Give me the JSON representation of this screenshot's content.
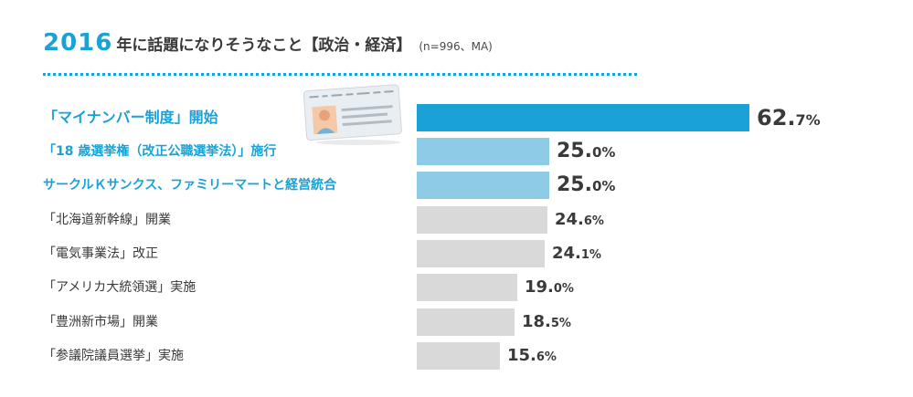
{
  "title": {
    "year": "2016",
    "main": "年に話題になりそうなこと【政治・経済】",
    "note": "(n=996、MA)"
  },
  "colors": {
    "accent": "#1aa1d6",
    "highlight_light": "#8dcbe7",
    "neutral_bar": "#d9d9d9",
    "text": "#3a3a3a"
  },
  "chart_data": {
    "type": "bar",
    "orientation": "horizontal",
    "title": "2016年に話題になりそうなこと【政治・経済】",
    "subtitle": "(n=996、MA)",
    "unit": "%",
    "xlim": [
      0,
      70
    ],
    "grid": false,
    "categories": [
      "「マイナンバー制度」開始",
      "「18 歳選挙権（改正公職選挙法）」施行",
      "サークルＫサンクス、ファミリーマートと経営統合",
      "「北海道新幹線」開業",
      "「電気事業法」改正",
      "「アメリカ大統領選」実施",
      "「豊洲新市場」開業",
      "「参議院議員選挙」実施"
    ],
    "values": [
      62.7,
      25.0,
      25.0,
      24.6,
      24.1,
      19.0,
      18.5,
      15.6
    ],
    "labels": [
      {
        "int": "62.",
        "dec": "7%"
      },
      {
        "int": "25.",
        "dec": "0%"
      },
      {
        "int": "25.",
        "dec": "0%"
      },
      {
        "int": "24.",
        "dec": "6%"
      },
      {
        "int": "24.",
        "dec": "1%"
      },
      {
        "int": "19.",
        "dec": "0%"
      },
      {
        "int": "18.",
        "dec": "5%"
      },
      {
        "int": "15.",
        "dec": "6%"
      }
    ],
    "highlight": [
      "primary",
      "secondary",
      "secondary",
      "none",
      "none",
      "none",
      "none",
      "none"
    ]
  },
  "decoration": {
    "icon": "id-card-icon"
  }
}
